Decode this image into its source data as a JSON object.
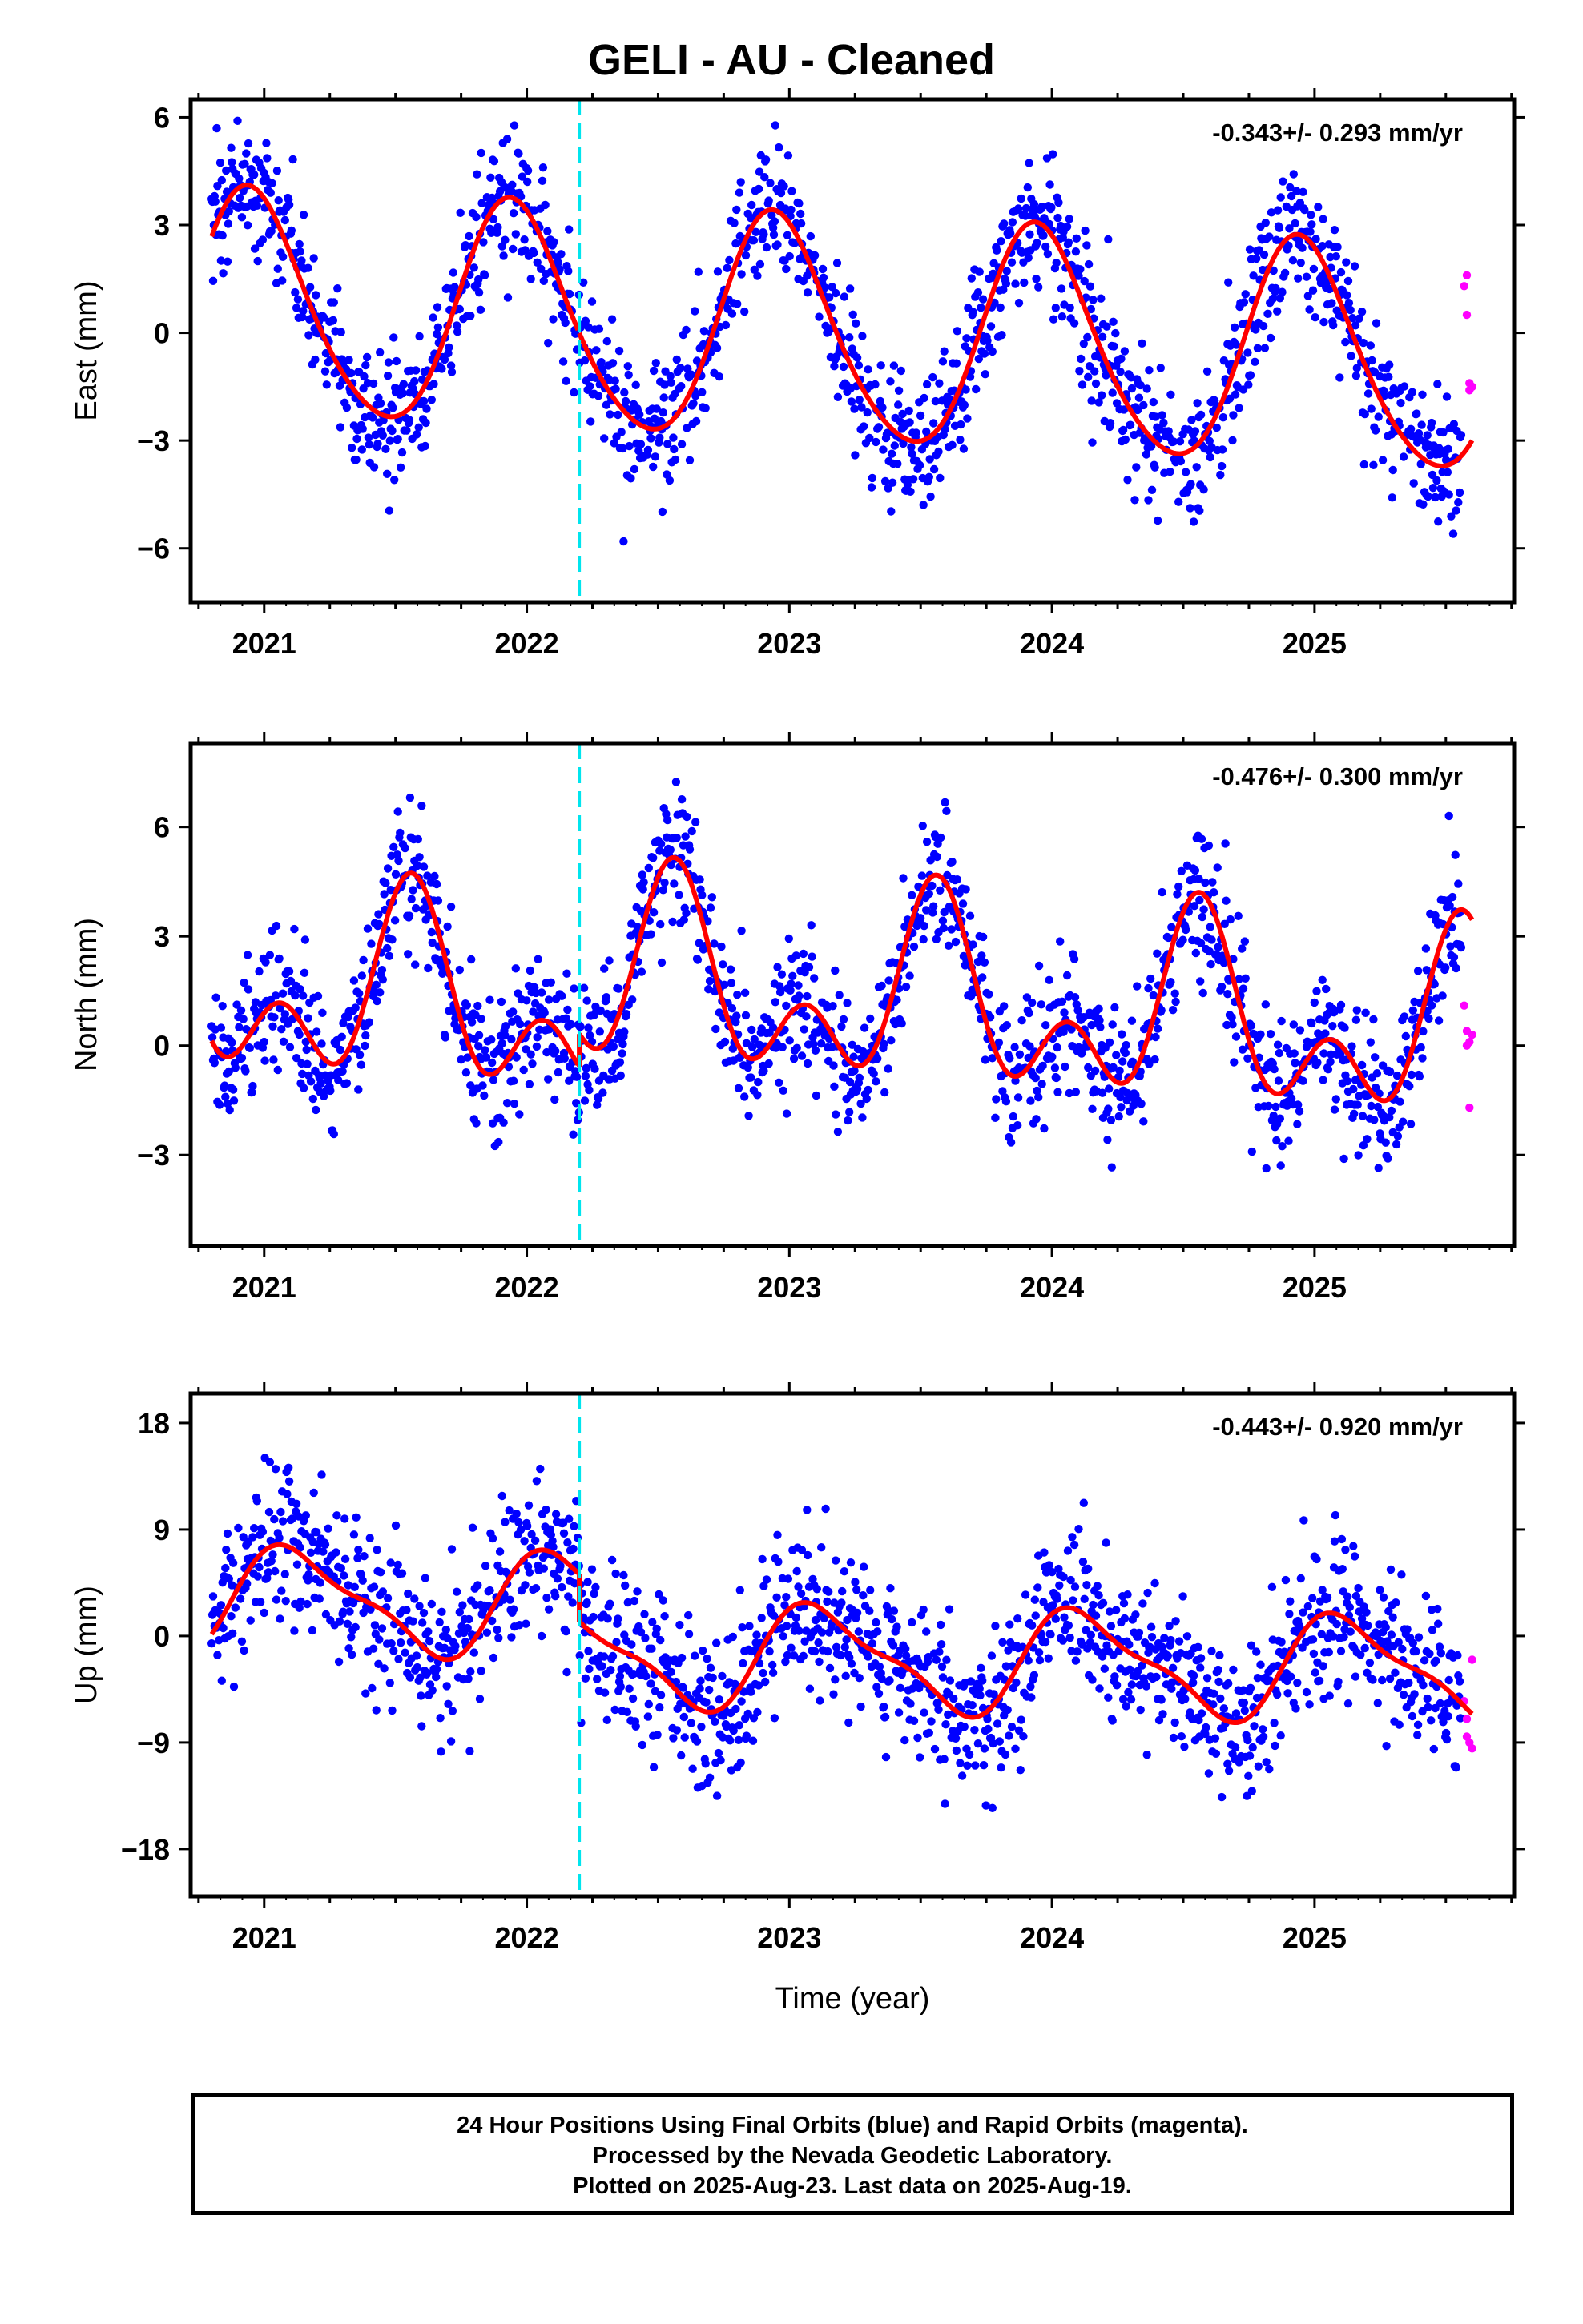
{
  "title": "GELI  - AU - Cleaned",
  "footer": {
    "line1": "24 Hour Positions Using Final Orbits (blue) and Rapid Orbits (magenta).",
    "line2": "Processed by the Nevada Geodetic Laboratory.",
    "line3": "Plotted on 2025-Aug-23. Last data on 2025-Aug-19."
  },
  "colors": {
    "final_orbits": "#0000ff",
    "rapid_orbits": "#ff00ff",
    "model_fit": "#ff0000",
    "event_marker": "#00e5ee"
  },
  "chart_data": [
    {
      "type": "scatter",
      "component": "East",
      "ylabel": "East (mm)",
      "xlabel": "",
      "rate_text": "-0.343+/- 0.293 mm/yr",
      "xlim": [
        2020.72,
        2025.76
      ],
      "ylim": [
        -7.5,
        6.5
      ],
      "xticks": [
        2021,
        2022,
        2023,
        2024,
        2025
      ],
      "yticks": [
        -6,
        -3,
        0,
        3,
        6
      ],
      "event_year": 2022.2,
      "fit": {
        "offset": 0.0,
        "trend": -0.343,
        "annual_amp": 3.1,
        "annual_peak": 2020.95,
        "semi_amp": 0.35,
        "semi_peak": 2020.9,
        "jump": 0.0
      },
      "scatter_sigma": 0.95,
      "final_range": [
        2020.8,
        2025.56
      ],
      "rapid_points": [
        [
          2025.57,
          1.3
        ],
        [
          2025.58,
          1.6
        ],
        [
          2025.58,
          0.5
        ],
        [
          2025.59,
          -1.4
        ],
        [
          2025.59,
          -1.6
        ],
        [
          2025.6,
          -1.5
        ]
      ],
      "series": [
        {
          "name": "Final Orbits"
        },
        {
          "name": "Rapid Orbits"
        }
      ]
    },
    {
      "type": "scatter",
      "component": "North",
      "ylabel": "North (mm)",
      "xlabel": "",
      "rate_text": "-0.476+/- 0.300 mm/yr",
      "xlim": [
        2020.72,
        2025.76
      ],
      "ylim": [
        -5.5,
        8.3
      ],
      "xticks": [
        2021,
        2022,
        2023,
        2024,
        2025
      ],
      "yticks": [
        -3,
        0,
        3,
        6
      ],
      "event_year": 2022.2,
      "fit": {
        "offset": 0.55,
        "trend": -0.476,
        "annual_amp": 1.9,
        "annual_peak": 2021.56,
        "semi_amp": 1.6,
        "semi_peak": 2021.56,
        "jump": 0.9
      },
      "scatter_sigma": 0.95,
      "final_range": [
        2020.8,
        2025.56
      ],
      "rapid_points": [
        [
          2025.57,
          1.1
        ],
        [
          2025.58,
          0.4
        ],
        [
          2025.58,
          0.0
        ],
        [
          2025.59,
          -1.7
        ],
        [
          2025.59,
          0.1
        ],
        [
          2025.6,
          0.3
        ]
      ],
      "series": [
        {
          "name": "Final Orbits"
        },
        {
          "name": "Rapid Orbits"
        }
      ]
    },
    {
      "type": "scatter",
      "component": "Up",
      "ylabel": "Up (mm)",
      "xlabel": "Time (year)",
      "rate_text": "-0.443+/- 0.920 mm/yr",
      "xlim": [
        2020.72,
        2025.76
      ],
      "ylim": [
        -22,
        20.5
      ],
      "xticks": [
        2021,
        2022,
        2023,
        2024,
        2025
      ],
      "yticks": [
        -18,
        -9,
        0,
        9,
        18
      ],
      "event_year": 2022.2,
      "fit": {
        "offset": 2.2,
        "trend": -0.443,
        "annual_amp": 4.1,
        "annual_peak": 2021.13,
        "semi_amp": 1.3,
        "semi_peak": 2021.0,
        "jump": -4.0
      },
      "scatter_sigma": 3.3,
      "final_range": [
        2020.8,
        2025.56
      ],
      "rapid_points": [
        [
          2025.57,
          -5.5
        ],
        [
          2025.58,
          -7.0
        ],
        [
          2025.58,
          -8.5
        ],
        [
          2025.59,
          -9.0
        ],
        [
          2025.6,
          -2.0
        ],
        [
          2025.6,
          -9.5
        ]
      ],
      "series": [
        {
          "name": "Final Orbits"
        },
        {
          "name": "Rapid Orbits"
        }
      ]
    }
  ]
}
